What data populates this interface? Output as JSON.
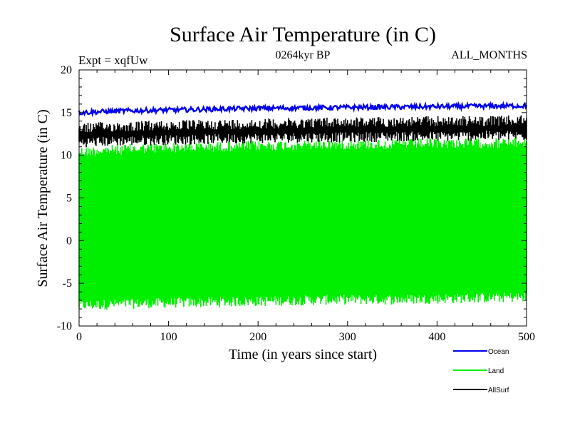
{
  "chart_data": {
    "type": "line",
    "title": "Surface Air Temperature (in C)",
    "subtitle": "0264kyr BP",
    "expt_label": "Expt = xqfUw",
    "months_label": "ALL_MONTHS",
    "xlabel": "Time (in years since start)",
    "ylabel": "Surface Air Temperature (in C)",
    "xlim": [
      0,
      500
    ],
    "ylim": [
      -10,
      20
    ],
    "x_ticks": [
      0,
      100,
      200,
      300,
      400,
      500
    ],
    "y_ticks": [
      -10,
      -5,
      0,
      5,
      10,
      15,
      20
    ],
    "x_tick_labels": [
      "0",
      "100",
      "200",
      "300",
      "400",
      "500"
    ],
    "y_tick_labels": [
      "-10",
      "-5",
      "0",
      "5",
      "10",
      "15",
      "20"
    ],
    "legend_position": "bottom-right",
    "series": [
      {
        "name": "Land",
        "color": "#00ee00",
        "band": true,
        "x": [
          0,
          50,
          100,
          150,
          200,
          250,
          300,
          350,
          400,
          450,
          500
        ],
        "upper": [
          11.0,
          11.3,
          11.5,
          11.6,
          11.7,
          11.8,
          11.9,
          11.9,
          12.0,
          12.0,
          12.1
        ],
        "lower": [
          -8.2,
          -8.0,
          -7.9,
          -7.8,
          -7.7,
          -7.6,
          -7.5,
          -7.5,
          -7.4,
          -7.3,
          -7.2
        ]
      },
      {
        "name": "AllSurf",
        "color": "#000000",
        "band": true,
        "x": [
          0,
          50,
          100,
          150,
          200,
          250,
          300,
          350,
          400,
          450,
          500
        ],
        "upper": [
          13.8,
          14.0,
          14.1,
          14.2,
          14.3,
          14.4,
          14.5,
          14.5,
          14.6,
          14.6,
          14.7
        ],
        "lower": [
          10.9,
          11.1,
          11.2,
          11.3,
          11.4,
          11.5,
          11.5,
          11.6,
          11.6,
          11.7,
          11.7
        ]
      },
      {
        "name": "Ocean",
        "color": "#0000ee",
        "band": false,
        "x": [
          0,
          50,
          100,
          150,
          200,
          250,
          300,
          350,
          400,
          450,
          500
        ],
        "values": [
          15.0,
          15.2,
          15.3,
          15.4,
          15.5,
          15.55,
          15.6,
          15.65,
          15.7,
          15.75,
          15.8
        ]
      }
    ],
    "legend": [
      {
        "name": "Ocean",
        "color": "#0000ee"
      },
      {
        "name": "Land",
        "color": "#00ee00"
      },
      {
        "name": "AllSurf",
        "color": "#000000"
      }
    ]
  }
}
